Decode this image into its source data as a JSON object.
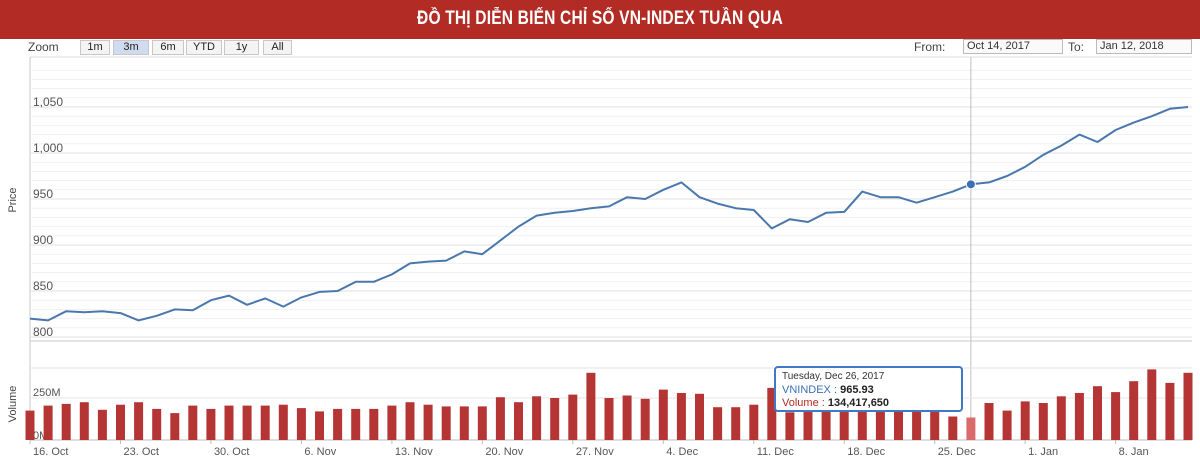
{
  "banner": {
    "title": "ĐỒ THỊ DIỄN BIẾN CHỈ SỐ VN-INDEX TUẦN QUA"
  },
  "zoom": {
    "label": "Zoom",
    "buttons": [
      "1m",
      "3m",
      "6m",
      "YTD",
      "1y",
      "All"
    ],
    "selected": "3m"
  },
  "range": {
    "from_label": "From:",
    "from_value": "Oct 14, 2017",
    "to_label": "To:",
    "to_value": "Jan 12, 2018"
  },
  "tooltip": {
    "date": "Tuesday, Dec 26, 2017",
    "series_label": "VNINDEX :",
    "series_value": "965.93",
    "volume_label": "Volume :",
    "volume_value": "134,417,650"
  },
  "colors": {
    "banner": "#b22c25",
    "line": "#4a78ad",
    "volume": "#b53535",
    "tooltip_border": "#3f79c6"
  },
  "chart_data": [
    {
      "type": "line",
      "title": "",
      "ylabel": "Price",
      "ylim": [
        800,
        1100
      ],
      "yticks": [
        "800",
        "850",
        "900",
        "950",
        "1,000",
        "1,050"
      ],
      "xtick_labels": [
        "16. Oct",
        "23. Oct",
        "30. Oct",
        "6. Nov",
        "13. Nov",
        "20. Nov",
        "27. Nov",
        "4. Dec",
        "11. Dec",
        "18. Dec",
        "25. Dec",
        "1. Jan",
        "8. Jan"
      ],
      "series": [
        {
          "values": [
            820,
            818,
            828,
            827,
            828,
            826,
            818,
            823,
            830,
            829,
            840,
            845,
            835,
            842,
            833,
            843,
            849,
            850,
            860,
            860,
            868,
            880,
            882,
            883,
            893,
            890,
            905,
            920,
            932,
            935,
            937,
            940,
            942,
            952,
            950,
            960,
            968,
            952,
            945,
            940,
            938,
            918,
            928,
            925,
            935,
            936,
            958,
            952,
            952,
            946,
            952,
            958,
            966,
            968,
            975,
            985,
            998,
            1008,
            1020,
            1012,
            1025,
            1033,
            1040,
            1048,
            1050
          ]
        }
      ],
      "highlight": {
        "index": 52,
        "value": 965.93
      }
    },
    {
      "type": "bar",
      "ylabel": "Volume",
      "yticks": [
        "0M",
        "250M"
      ],
      "unit": "M",
      "values": [
        175,
        205,
        215,
        225,
        180,
        210,
        225,
        185,
        160,
        205,
        185,
        205,
        205,
        205,
        210,
        190,
        170,
        185,
        185,
        185,
        205,
        225,
        210,
        200,
        200,
        200,
        255,
        225,
        260,
        250,
        270,
        400,
        250,
        265,
        245,
        300,
        280,
        275,
        195,
        195,
        210,
        310,
        165,
        195,
        265,
        290,
        280,
        230,
        190,
        180,
        180,
        140,
        134,
        220,
        175,
        230,
        220,
        260,
        280,
        320,
        285,
        350,
        420,
        340,
        400
      ]
    }
  ]
}
